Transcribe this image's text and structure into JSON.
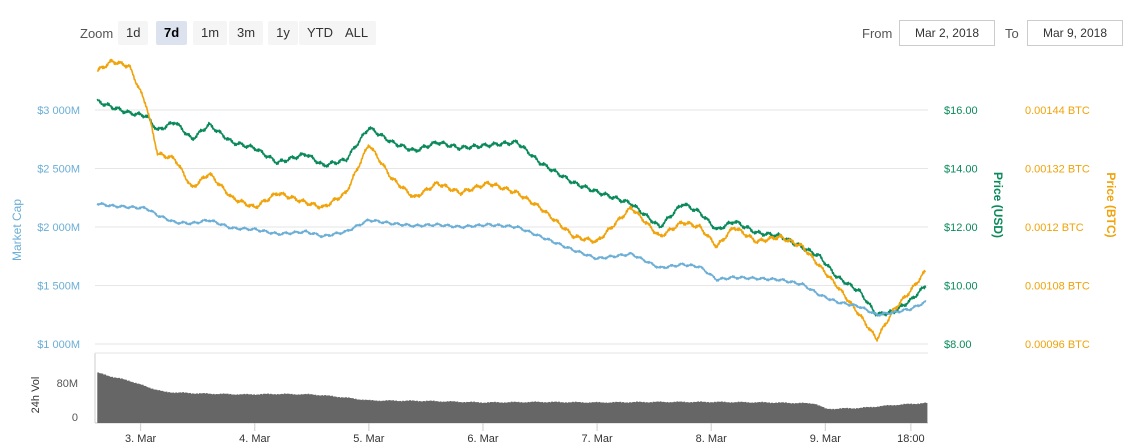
{
  "toolbar": {
    "zoom_label": "Zoom",
    "zoom_options": [
      "1d",
      "7d",
      "1m",
      "3m",
      "1y",
      "YTD",
      "ALL"
    ],
    "zoom_selected": "7d",
    "from_label": "From",
    "from_value": "Mar 2, 2018",
    "to_label": "To",
    "to_value": "Mar 9, 2018"
  },
  "colors": {
    "market_cap": "#6baed6",
    "price_usd": "#0a8a5a",
    "price_btc": "#f0a30a",
    "volume": "#666666",
    "grid": "#e6e6e6"
  },
  "chart_data": {
    "type": "line",
    "x": [
      "3. Mar",
      "4. Mar",
      "5. Mar",
      "6. Mar",
      "7. Mar",
      "8. Mar",
      "9. Mar",
      "18:00"
    ],
    "axes": {
      "market_cap": {
        "label": "Market Cap",
        "ticks": [
          "$1 000M",
          "$1 500M",
          "$2 000M",
          "$2 500M",
          "$3 000M"
        ],
        "range": [
          1000,
          3000
        ]
      },
      "price_usd": {
        "label": "Price (USD)",
        "ticks": [
          "$8.00",
          "$10.00",
          "$12.00",
          "$14.00",
          "$16.00"
        ],
        "range": [
          8,
          16
        ]
      },
      "price_btc": {
        "label": "Price (BTC)",
        "ticks": [
          "0.00096 BTC",
          "0.00108 BTC",
          "0.0012 BTC",
          "0.00132 BTC",
          "0.00144 BTC"
        ],
        "range": [
          0.00096,
          0.00144
        ]
      },
      "volume": {
        "label": "24h Vol",
        "ticks": [
          "0",
          "80M"
        ],
        "range": [
          0,
          120
        ]
      }
    },
    "x_range": [
      2.6,
      9.9
    ],
    "series": [
      {
        "key": "price_usd",
        "axis": "price_usd",
        "points": [
          [
            2.62,
            16.3
          ],
          [
            2.75,
            16.1
          ],
          [
            2.9,
            15.9
          ],
          [
            3.05,
            15.8
          ],
          [
            3.15,
            15.3
          ],
          [
            3.3,
            15.6
          ],
          [
            3.45,
            15.0
          ],
          [
            3.6,
            15.5
          ],
          [
            3.8,
            14.9
          ],
          [
            4.0,
            14.7
          ],
          [
            4.2,
            14.2
          ],
          [
            4.45,
            14.5
          ],
          [
            4.6,
            14.1
          ],
          [
            4.8,
            14.3
          ],
          [
            5.0,
            15.4
          ],
          [
            5.2,
            14.9
          ],
          [
            5.4,
            14.6
          ],
          [
            5.6,
            14.9
          ],
          [
            5.8,
            14.7
          ],
          [
            6.05,
            14.8
          ],
          [
            6.3,
            14.9
          ],
          [
            6.5,
            14.2
          ],
          [
            6.8,
            13.5
          ],
          [
            7.0,
            13.2
          ],
          [
            7.3,
            12.8
          ],
          [
            7.55,
            12.0
          ],
          [
            7.75,
            12.8
          ],
          [
            7.9,
            12.5
          ],
          [
            8.05,
            11.9
          ],
          [
            8.2,
            12.2
          ],
          [
            8.4,
            11.8
          ],
          [
            8.6,
            11.7
          ],
          [
            8.8,
            11.3
          ],
          [
            8.95,
            11.0
          ],
          [
            9.1,
            10.3
          ],
          [
            9.3,
            9.8
          ],
          [
            9.45,
            9.0
          ],
          [
            9.6,
            9.1
          ],
          [
            9.75,
            9.5
          ],
          [
            9.88,
            10.0
          ]
        ]
      },
      {
        "key": "price_btc",
        "axis": "price_btc",
        "points": [
          [
            2.62,
            0.00152
          ],
          [
            2.75,
            0.00154
          ],
          [
            2.9,
            0.00153
          ],
          [
            3.05,
            0.00145
          ],
          [
            3.15,
            0.00135
          ],
          [
            3.3,
            0.00134
          ],
          [
            3.45,
            0.00128
          ],
          [
            3.6,
            0.00131
          ],
          [
            3.8,
            0.00126
          ],
          [
            4.0,
            0.00124
          ],
          [
            4.2,
            0.00127
          ],
          [
            4.45,
            0.00125
          ],
          [
            4.6,
            0.00124
          ],
          [
            4.8,
            0.00127
          ],
          [
            5.0,
            0.00137
          ],
          [
            5.2,
            0.0013
          ],
          [
            5.4,
            0.00126
          ],
          [
            5.6,
            0.00129
          ],
          [
            5.8,
            0.00127
          ],
          [
            6.05,
            0.00129
          ],
          [
            6.3,
            0.00127
          ],
          [
            6.5,
            0.00124
          ],
          [
            6.8,
            0.00118
          ],
          [
            7.0,
            0.00117
          ],
          [
            7.3,
            0.00124
          ],
          [
            7.55,
            0.00118
          ],
          [
            7.75,
            0.00121
          ],
          [
            7.9,
            0.0012
          ],
          [
            8.05,
            0.00116
          ],
          [
            8.2,
            0.0012
          ],
          [
            8.4,
            0.00117
          ],
          [
            8.6,
            0.00118
          ],
          [
            8.8,
            0.00116
          ],
          [
            8.95,
            0.00112
          ],
          [
            9.1,
            0.00108
          ],
          [
            9.3,
            0.00102
          ],
          [
            9.45,
            0.00097
          ],
          [
            9.6,
            0.00103
          ],
          [
            9.75,
            0.00107
          ],
          [
            9.88,
            0.00111
          ]
        ]
      },
      {
        "key": "market_cap",
        "axis": "market_cap",
        "points": [
          [
            2.62,
            2200
          ],
          [
            2.75,
            2180
          ],
          [
            2.9,
            2170
          ],
          [
            3.05,
            2160
          ],
          [
            3.15,
            2100
          ],
          [
            3.3,
            2040
          ],
          [
            3.45,
            2030
          ],
          [
            3.6,
            2060
          ],
          [
            3.8,
            1990
          ],
          [
            4.0,
            1980
          ],
          [
            4.2,
            1940
          ],
          [
            4.45,
            1960
          ],
          [
            4.6,
            1920
          ],
          [
            4.8,
            1960
          ],
          [
            5.0,
            2060
          ],
          [
            5.2,
            2030
          ],
          [
            5.4,
            2010
          ],
          [
            5.6,
            2020
          ],
          [
            5.8,
            2000
          ],
          [
            6.05,
            2020
          ],
          [
            6.3,
            2000
          ],
          [
            6.5,
            1920
          ],
          [
            6.8,
            1800
          ],
          [
            7.0,
            1730
          ],
          [
            7.3,
            1770
          ],
          [
            7.55,
            1650
          ],
          [
            7.75,
            1680
          ],
          [
            7.9,
            1660
          ],
          [
            8.05,
            1550
          ],
          [
            8.2,
            1570
          ],
          [
            8.4,
            1560
          ],
          [
            8.6,
            1550
          ],
          [
            8.8,
            1510
          ],
          [
            8.95,
            1420
          ],
          [
            9.1,
            1360
          ],
          [
            9.3,
            1320
          ],
          [
            9.45,
            1250
          ],
          [
            9.6,
            1270
          ],
          [
            9.75,
            1300
          ],
          [
            9.88,
            1360
          ]
        ]
      }
    ],
    "volume": {
      "axis": "volume",
      "points": [
        [
          2.62,
          100
        ],
        [
          2.75,
          92
        ],
        [
          2.9,
          84
        ],
        [
          3.05,
          72
        ],
        [
          3.2,
          62
        ],
        [
          3.5,
          59
        ],
        [
          3.9,
          57
        ],
        [
          4.2,
          58
        ],
        [
          4.5,
          57
        ],
        [
          4.7,
          53
        ],
        [
          5.0,
          45
        ],
        [
          5.5,
          44
        ],
        [
          6.0,
          41
        ],
        [
          6.5,
          42
        ],
        [
          7.0,
          41
        ],
        [
          7.5,
          42
        ],
        [
          8.0,
          42
        ],
        [
          8.5,
          41
        ],
        [
          8.9,
          39
        ],
        [
          9.0,
          28
        ],
        [
          9.3,
          30
        ],
        [
          9.6,
          36
        ],
        [
          9.88,
          40
        ]
      ]
    }
  }
}
